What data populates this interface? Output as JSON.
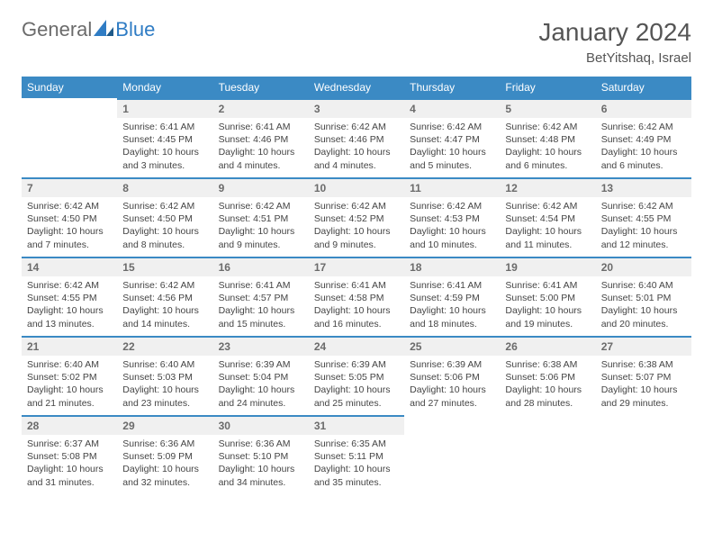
{
  "brand": {
    "part1": "General",
    "part2": "Blue"
  },
  "header": {
    "monthTitle": "January 2024",
    "location": "BetYitshaq, Israel"
  },
  "colors": {
    "headerBg": "#3b8ac4",
    "dayNumBg": "#f0f0f0",
    "text": "#444444"
  },
  "weekdays": [
    "Sunday",
    "Monday",
    "Tuesday",
    "Wednesday",
    "Thursday",
    "Friday",
    "Saturday"
  ],
  "days": [
    {
      "num": "1",
      "sunrise": "Sunrise: 6:41 AM",
      "sunset": "Sunset: 4:45 PM",
      "daylight": "Daylight: 10 hours and 3 minutes."
    },
    {
      "num": "2",
      "sunrise": "Sunrise: 6:41 AM",
      "sunset": "Sunset: 4:46 PM",
      "daylight": "Daylight: 10 hours and 4 minutes."
    },
    {
      "num": "3",
      "sunrise": "Sunrise: 6:42 AM",
      "sunset": "Sunset: 4:46 PM",
      "daylight": "Daylight: 10 hours and 4 minutes."
    },
    {
      "num": "4",
      "sunrise": "Sunrise: 6:42 AM",
      "sunset": "Sunset: 4:47 PM",
      "daylight": "Daylight: 10 hours and 5 minutes."
    },
    {
      "num": "5",
      "sunrise": "Sunrise: 6:42 AM",
      "sunset": "Sunset: 4:48 PM",
      "daylight": "Daylight: 10 hours and 6 minutes."
    },
    {
      "num": "6",
      "sunrise": "Sunrise: 6:42 AM",
      "sunset": "Sunset: 4:49 PM",
      "daylight": "Daylight: 10 hours and 6 minutes."
    },
    {
      "num": "7",
      "sunrise": "Sunrise: 6:42 AM",
      "sunset": "Sunset: 4:50 PM",
      "daylight": "Daylight: 10 hours and 7 minutes."
    },
    {
      "num": "8",
      "sunrise": "Sunrise: 6:42 AM",
      "sunset": "Sunset: 4:50 PM",
      "daylight": "Daylight: 10 hours and 8 minutes."
    },
    {
      "num": "9",
      "sunrise": "Sunrise: 6:42 AM",
      "sunset": "Sunset: 4:51 PM",
      "daylight": "Daylight: 10 hours and 9 minutes."
    },
    {
      "num": "10",
      "sunrise": "Sunrise: 6:42 AM",
      "sunset": "Sunset: 4:52 PM",
      "daylight": "Daylight: 10 hours and 9 minutes."
    },
    {
      "num": "11",
      "sunrise": "Sunrise: 6:42 AM",
      "sunset": "Sunset: 4:53 PM",
      "daylight": "Daylight: 10 hours and 10 minutes."
    },
    {
      "num": "12",
      "sunrise": "Sunrise: 6:42 AM",
      "sunset": "Sunset: 4:54 PM",
      "daylight": "Daylight: 10 hours and 11 minutes."
    },
    {
      "num": "13",
      "sunrise": "Sunrise: 6:42 AM",
      "sunset": "Sunset: 4:55 PM",
      "daylight": "Daylight: 10 hours and 12 minutes."
    },
    {
      "num": "14",
      "sunrise": "Sunrise: 6:42 AM",
      "sunset": "Sunset: 4:55 PM",
      "daylight": "Daylight: 10 hours and 13 minutes."
    },
    {
      "num": "15",
      "sunrise": "Sunrise: 6:42 AM",
      "sunset": "Sunset: 4:56 PM",
      "daylight": "Daylight: 10 hours and 14 minutes."
    },
    {
      "num": "16",
      "sunrise": "Sunrise: 6:41 AM",
      "sunset": "Sunset: 4:57 PM",
      "daylight": "Daylight: 10 hours and 15 minutes."
    },
    {
      "num": "17",
      "sunrise": "Sunrise: 6:41 AM",
      "sunset": "Sunset: 4:58 PM",
      "daylight": "Daylight: 10 hours and 16 minutes."
    },
    {
      "num": "18",
      "sunrise": "Sunrise: 6:41 AM",
      "sunset": "Sunset: 4:59 PM",
      "daylight": "Daylight: 10 hours and 18 minutes."
    },
    {
      "num": "19",
      "sunrise": "Sunrise: 6:41 AM",
      "sunset": "Sunset: 5:00 PM",
      "daylight": "Daylight: 10 hours and 19 minutes."
    },
    {
      "num": "20",
      "sunrise": "Sunrise: 6:40 AM",
      "sunset": "Sunset: 5:01 PM",
      "daylight": "Daylight: 10 hours and 20 minutes."
    },
    {
      "num": "21",
      "sunrise": "Sunrise: 6:40 AM",
      "sunset": "Sunset: 5:02 PM",
      "daylight": "Daylight: 10 hours and 21 minutes."
    },
    {
      "num": "22",
      "sunrise": "Sunrise: 6:40 AM",
      "sunset": "Sunset: 5:03 PM",
      "daylight": "Daylight: 10 hours and 23 minutes."
    },
    {
      "num": "23",
      "sunrise": "Sunrise: 6:39 AM",
      "sunset": "Sunset: 5:04 PM",
      "daylight": "Daylight: 10 hours and 24 minutes."
    },
    {
      "num": "24",
      "sunrise": "Sunrise: 6:39 AM",
      "sunset": "Sunset: 5:05 PM",
      "daylight": "Daylight: 10 hours and 25 minutes."
    },
    {
      "num": "25",
      "sunrise": "Sunrise: 6:39 AM",
      "sunset": "Sunset: 5:06 PM",
      "daylight": "Daylight: 10 hours and 27 minutes."
    },
    {
      "num": "26",
      "sunrise": "Sunrise: 6:38 AM",
      "sunset": "Sunset: 5:06 PM",
      "daylight": "Daylight: 10 hours and 28 minutes."
    },
    {
      "num": "27",
      "sunrise": "Sunrise: 6:38 AM",
      "sunset": "Sunset: 5:07 PM",
      "daylight": "Daylight: 10 hours and 29 minutes."
    },
    {
      "num": "28",
      "sunrise": "Sunrise: 6:37 AM",
      "sunset": "Sunset: 5:08 PM",
      "daylight": "Daylight: 10 hours and 31 minutes."
    },
    {
      "num": "29",
      "sunrise": "Sunrise: 6:36 AM",
      "sunset": "Sunset: 5:09 PM",
      "daylight": "Daylight: 10 hours and 32 minutes."
    },
    {
      "num": "30",
      "sunrise": "Sunrise: 6:36 AM",
      "sunset": "Sunset: 5:10 PM",
      "daylight": "Daylight: 10 hours and 34 minutes."
    },
    {
      "num": "31",
      "sunrise": "Sunrise: 6:35 AM",
      "sunset": "Sunset: 5:11 PM",
      "daylight": "Daylight: 10 hours and 35 minutes."
    }
  ],
  "startOffset": 1
}
